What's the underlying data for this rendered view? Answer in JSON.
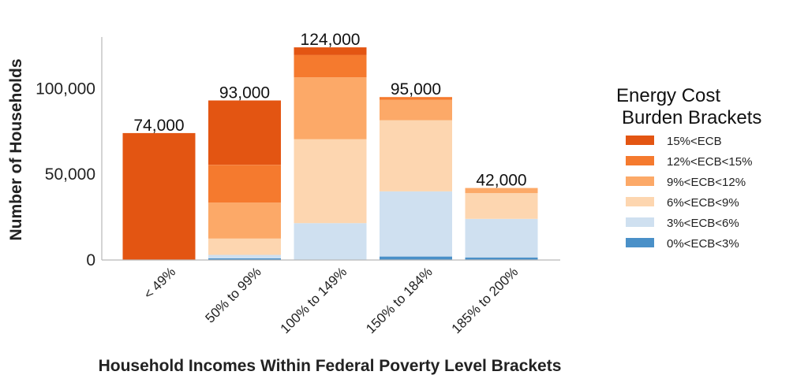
{
  "chart_data": {
    "type": "bar",
    "stacked": true,
    "xlabel": "Household Incomes Within Federal Poverty Level Brackets",
    "ylabel": "Number of Households",
    "ylim": [
      0,
      130000
    ],
    "yticks": [
      0,
      50000,
      100000
    ],
    "ytick_labels": [
      "0",
      "50,000",
      "100,000"
    ],
    "grid": false,
    "legend": {
      "title_lines": [
        "Energy Cost",
        "Burden Brackets"
      ],
      "placement": "right"
    },
    "categories": [
      "< 49%",
      "50% to 99%",
      "100% to 149%",
      "150% to 184%",
      "185% to 200%"
    ],
    "totals": [
      74000,
      93000,
      124000,
      95000,
      42000
    ],
    "total_labels": [
      "74,000",
      "93,000",
      "124,000",
      "95,000",
      "42,000"
    ],
    "series": [
      {
        "name": "0%<ECB<3%",
        "color": "#4a90c8",
        "values": [
          0,
          1000,
          0,
          2000,
          1500
        ]
      },
      {
        "name": "3%<ECB<6%",
        "color": "#cfe0f0",
        "values": [
          0,
          2000,
          21500,
          38000,
          22500
        ]
      },
      {
        "name": "6%<ECB<9%",
        "color": "#fdd6b0",
        "values": [
          0,
          9500,
          49000,
          41500,
          15000
        ]
      },
      {
        "name": "9%<ECB<12%",
        "color": "#fca968",
        "values": [
          0,
          21000,
          36000,
          12000,
          3000
        ]
      },
      {
        "name": "12%<ECB<15%",
        "color": "#f57a2e",
        "values": [
          0,
          22000,
          13000,
          1500,
          0
        ]
      },
      {
        "name": "15%<ECB",
        "color": "#e35512",
        "values": [
          74000,
          37500,
          4500,
          0,
          0
        ]
      }
    ]
  }
}
